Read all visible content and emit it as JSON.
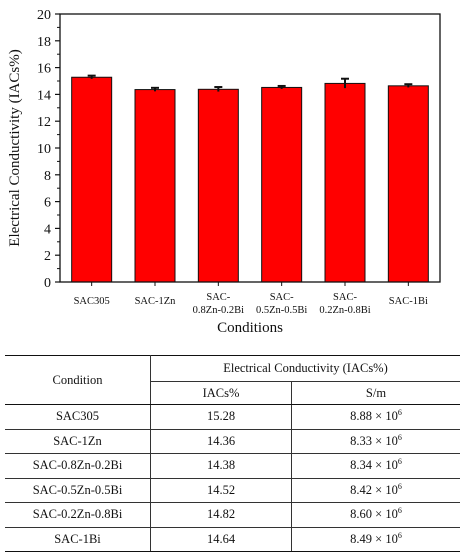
{
  "chart_data": {
    "type": "bar",
    "categories": [
      [
        "SAC305"
      ],
      [
        "SAC-1Zn"
      ],
      [
        "SAC-",
        "0.8Zn-0.2Bi"
      ],
      [
        "SAC-",
        "0.5Zn-0.5Bi"
      ],
      [
        "SAC-",
        "0.2Zn-0.8Bi"
      ],
      [
        "SAC-1Bi"
      ]
    ],
    "values": [
      15.28,
      14.36,
      14.38,
      14.52,
      14.82,
      14.64
    ],
    "errors": [
      0.12,
      0.13,
      0.17,
      0.11,
      0.35,
      0.12
    ],
    "xlabel": "Conditions",
    "ylabel": "Electrical Conductivity (IACs%)",
    "ylim": [
      0,
      20
    ],
    "yticks": [
      0,
      2,
      4,
      6,
      8,
      10,
      12,
      14,
      16,
      18,
      20
    ],
    "bar_color": "#ff0000",
    "grid": false
  },
  "table": {
    "col_condition": "Condition",
    "group_header": "Electrical Conductivity (IACs%)",
    "sub_iacs": "IACs%",
    "sub_sm": "S/m",
    "rows": [
      {
        "condition": "SAC305",
        "iacs": "15.28",
        "sm_base": "8.88 × 10",
        "sm_exp": "6"
      },
      {
        "condition": "SAC-1Zn",
        "iacs": "14.36",
        "sm_base": "8.33 × 10",
        "sm_exp": "6"
      },
      {
        "condition": "SAC-0.8Zn-0.2Bi",
        "iacs": "14.38",
        "sm_base": "8.34 × 10",
        "sm_exp": "6"
      },
      {
        "condition": "SAC-0.5Zn-0.5Bi",
        "iacs": "14.52",
        "sm_base": "8.42 × 10",
        "sm_exp": "6"
      },
      {
        "condition": "SAC-0.2Zn-0.8Bi",
        "iacs": "14.82",
        "sm_base": "8.60 × 10",
        "sm_exp": "6"
      },
      {
        "condition": "SAC-1Bi",
        "iacs": "14.64",
        "sm_base": "8.49 × 10",
        "sm_exp": "6"
      }
    ]
  }
}
